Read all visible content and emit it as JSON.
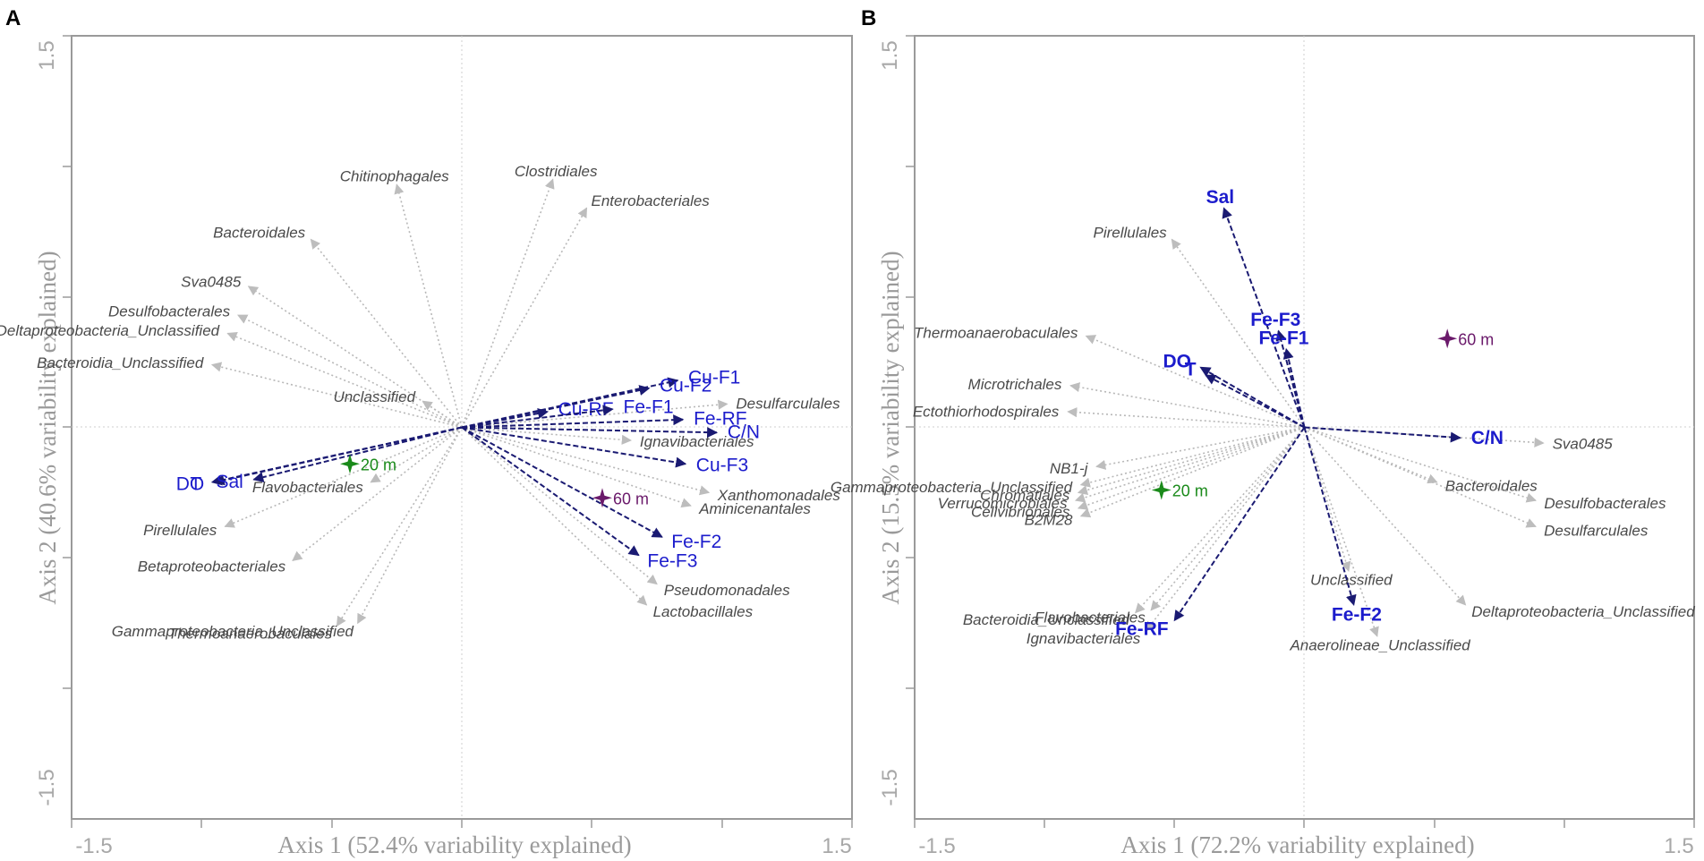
{
  "chart_data": [
    {
      "panel": "A",
      "type": "scatter",
      "subtype": "biplot",
      "xlabel": "Axis 1 (52.4% variability explained)",
      "ylabel": "Axis 2 (40.6% variability explained)",
      "xlim": [
        -1.5,
        1.5
      ],
      "ylim": [
        -1.5,
        1.5
      ],
      "x_tick_labels": [
        "-1.5",
        "1.5"
      ],
      "y_tick_labels": [
        "1.5",
        "-1.5"
      ],
      "bold_env": false,
      "env_vectors": [
        {
          "label": "Cu-F1",
          "x": 0.83,
          "y": 0.18
        },
        {
          "label": "Cu-F2",
          "x": 0.72,
          "y": 0.15
        },
        {
          "label": "Cu-RF",
          "x": 0.33,
          "y": 0.06
        },
        {
          "label": "Fe-F1",
          "x": 0.58,
          "y": 0.07
        },
        {
          "label": "Fe-RF",
          "x": 0.85,
          "y": 0.03
        },
        {
          "label": "C/N",
          "x": 0.98,
          "y": -0.02
        },
        {
          "label": "Cu-F3",
          "x": 0.86,
          "y": -0.14
        },
        {
          "label": "Fe-F2",
          "x": 0.77,
          "y": -0.42
        },
        {
          "label": "Fe-F3",
          "x": 0.68,
          "y": -0.49
        },
        {
          "label": "T",
          "x": -0.96,
          "y": -0.21
        },
        {
          "label": "DO",
          "x": -0.95,
          "y": -0.21
        },
        {
          "label": "Sal",
          "x": -0.8,
          "y": -0.2
        }
      ],
      "taxa_vectors": [
        {
          "label": "Chitinophagales",
          "x": -0.25,
          "y": 0.93
        },
        {
          "label": "Clostridiales",
          "x": 0.35,
          "y": 0.95
        },
        {
          "label": "Enterobacteriales",
          "x": 0.48,
          "y": 0.84
        },
        {
          "label": "Bacteroidales",
          "x": -0.58,
          "y": 0.72
        },
        {
          "label": "Sva0485",
          "x": -0.82,
          "y": 0.54
        },
        {
          "label": "Desulfobacterales",
          "x": -0.86,
          "y": 0.43
        },
        {
          "label": "Deltaproteobacteria_Unclassified",
          "x": -0.9,
          "y": 0.36
        },
        {
          "label": "Bacteroidia_Unclassified",
          "x": -0.96,
          "y": 0.24
        },
        {
          "label": "Unclassified",
          "x": -0.15,
          "y": 0.1
        },
        {
          "label": "Desulfarculales",
          "x": 1.02,
          "y": 0.09
        },
        {
          "label": "Ignavibacteriales",
          "x": 0.65,
          "y": -0.05
        },
        {
          "label": "Xanthomonadales",
          "x": 0.95,
          "y": -0.25
        },
        {
          "label": "Aminicenantales",
          "x": 0.88,
          "y": -0.3
        },
        {
          "label": "Pseudomonadales",
          "x": 0.75,
          "y": -0.6
        },
        {
          "label": "Lactobacillales",
          "x": 0.71,
          "y": -0.68
        },
        {
          "label": "Flavobacteriales",
          "x": -0.35,
          "y": -0.21
        },
        {
          "label": "Pirellulales",
          "x": -0.91,
          "y": -0.38
        },
        {
          "label": "Betaproteobacteriales",
          "x": -0.65,
          "y": -0.51
        },
        {
          "label": "Thermoanaerobaculales",
          "x": -0.48,
          "y": -0.76
        },
        {
          "label": "Gammaproteobacteria_Unclassified",
          "x": -0.4,
          "y": -0.75
        }
      ],
      "samples": [
        {
          "label": "20 m",
          "x": -0.43,
          "y": -0.14,
          "color": "#1a8a1a"
        },
        {
          "label": "60 m",
          "x": 0.54,
          "y": -0.27,
          "color": "#6b1a6b"
        }
      ]
    },
    {
      "panel": "B",
      "type": "scatter",
      "subtype": "biplot",
      "xlabel": "Axis 1 (72.2% variability explained)",
      "ylabel": "Axis 2 (15.5% variability explained)",
      "xlim": [
        -1.5,
        1.5
      ],
      "ylim": [
        -1.5,
        1.5
      ],
      "x_tick_labels": [
        "-1.5",
        "1.5"
      ],
      "y_tick_labels": [
        "1.5",
        "-1.5"
      ],
      "bold_env": true,
      "env_vectors": [
        {
          "label": "Sal",
          "x": -0.31,
          "y": 0.84
        },
        {
          "label": "Fe-F3",
          "x": -0.1,
          "y": 0.37
        },
        {
          "label": "Fe-F1",
          "x": -0.07,
          "y": 0.3
        },
        {
          "label": "DO",
          "x": -0.4,
          "y": 0.23
        },
        {
          "label": "T",
          "x": -0.38,
          "y": 0.2
        },
        {
          "label": "C/N",
          "x": 0.6,
          "y": -0.04
        },
        {
          "label": "Fe-F2",
          "x": 0.19,
          "y": -0.68
        },
        {
          "label": "Fe-RF",
          "x": -0.5,
          "y": -0.74
        }
      ],
      "taxa_vectors": [
        {
          "label": "Pirellulales",
          "x": -0.51,
          "y": 0.72
        },
        {
          "label": "Thermoanaerobaculales",
          "x": -0.84,
          "y": 0.35
        },
        {
          "label": "Microtrichales",
          "x": -0.9,
          "y": 0.16
        },
        {
          "label": "Ectothiorhodospirales",
          "x": -0.91,
          "y": 0.06
        },
        {
          "label": "Sva0485",
          "x": 0.92,
          "y": -0.06
        },
        {
          "label": "NB1-j",
          "x": -0.8,
          "y": -0.15
        },
        {
          "label": "Gammaproteobacteria_Unclassified",
          "x": -0.86,
          "y": -0.22
        },
        {
          "label": "Chromatiales",
          "x": -0.87,
          "y": -0.25
        },
        {
          "label": "Verrucomicrobiales",
          "x": -0.88,
          "y": -0.28
        },
        {
          "label": "Cellvibrionales",
          "x": -0.87,
          "y": -0.31
        },
        {
          "label": "B2M28",
          "x": -0.86,
          "y": -0.34
        },
        {
          "label": "Bacteroidales",
          "x": 0.51,
          "y": -0.21
        },
        {
          "label": "Desulfobacterales",
          "x": 0.89,
          "y": -0.28
        },
        {
          "label": "Desulfarculales",
          "x": 0.89,
          "y": -0.38
        },
        {
          "label": "Unclassified",
          "x": 0.17,
          "y": -0.55
        },
        {
          "label": "Deltaproteobacteria_Unclassified",
          "x": 0.62,
          "y": -0.68
        },
        {
          "label": "Anaerolineae_Unclassified",
          "x": 0.28,
          "y": -0.8
        },
        {
          "label": "Bacteroidia_Unclassified",
          "x": -0.65,
          "y": -0.71
        },
        {
          "label": "Flavobacteriales",
          "x": -0.59,
          "y": -0.7
        },
        {
          "label": "Ignavibacteriales",
          "x": -0.61,
          "y": -0.78
        }
      ],
      "samples": [
        {
          "label": "20 m",
          "x": -0.55,
          "y": -0.24,
          "color": "#1a8a1a"
        },
        {
          "label": "60 m",
          "x": 0.55,
          "y": 0.34,
          "color": "#6b1a6b"
        }
      ]
    }
  ],
  "colors": {
    "env_arrow": "#1a1a72",
    "env_text": "#1c1ccc",
    "taxon_arrow": "#b8b8b8",
    "taxon_text": "#4a4a4a",
    "frame": "#9a9a9a",
    "ref_line": "#c8c8c8"
  },
  "icons": [
    "four-point-star-marker-icon"
  ]
}
